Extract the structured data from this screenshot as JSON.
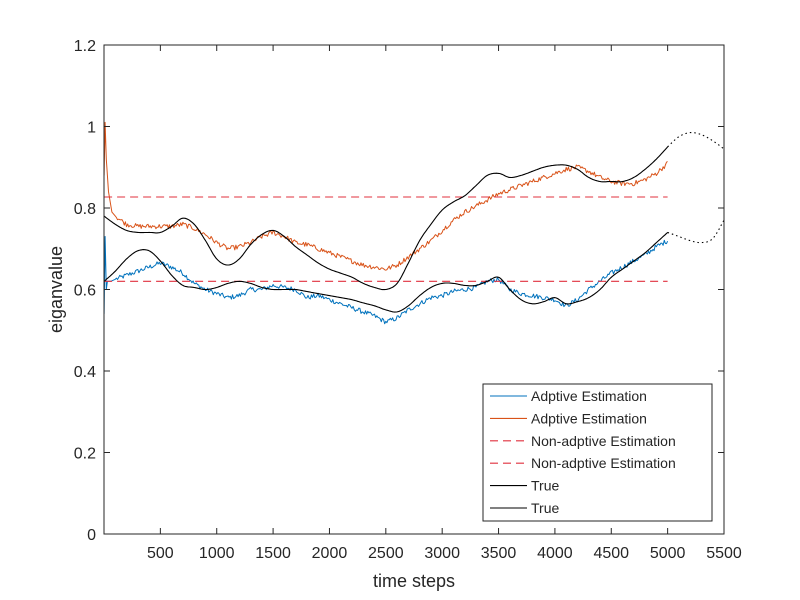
{
  "chart_data": {
    "type": "line",
    "title": "",
    "xlabel": "time steps",
    "ylabel": "eiganvalue",
    "xlim": [
      0,
      5500
    ],
    "ylim": [
      0,
      1.2
    ],
    "xticks": [
      500,
      1000,
      1500,
      2000,
      2500,
      3000,
      3500,
      4000,
      4500,
      5000,
      5500
    ],
    "yticks": [
      0,
      0.2,
      0.4,
      0.6,
      0.8,
      1,
      1.2
    ],
    "xtick_labels": [
      "500",
      "1000",
      "1500",
      "2000",
      "2500",
      "3000",
      "3500",
      "4000",
      "4500",
      "5000",
      "5500"
    ],
    "ytick_labels": [
      "0",
      "0.2",
      "0.4",
      "0.6",
      "0.8",
      "1",
      "1.2"
    ],
    "grid": false,
    "legend_position": "bottom-right",
    "series": [
      {
        "name": "Adptive Estimation",
        "color": "#0072bd",
        "style": "solid",
        "noise": true,
        "x": [
          1,
          10,
          20,
          30,
          60,
          100,
          200,
          300,
          400,
          500,
          600,
          700,
          800,
          900,
          1000,
          1100,
          1200,
          1300,
          1400,
          1500,
          1600,
          1700,
          1800,
          1900,
          2000,
          2100,
          2200,
          2300,
          2400,
          2500,
          2600,
          2700,
          2800,
          2900,
          3000,
          3100,
          3200,
          3300,
          3400,
          3500,
          3600,
          3700,
          3800,
          3900,
          4000,
          4100,
          4200,
          4300,
          4400,
          4500,
          4600,
          4700,
          4800,
          4900,
          5000
        ],
        "y": [
          0.54,
          0.73,
          0.6,
          0.62,
          0.62,
          0.625,
          0.635,
          0.645,
          0.655,
          0.665,
          0.655,
          0.64,
          0.615,
          0.6,
          0.59,
          0.58,
          0.585,
          0.6,
          0.6,
          0.61,
          0.605,
          0.6,
          0.58,
          0.585,
          0.575,
          0.565,
          0.555,
          0.545,
          0.535,
          0.52,
          0.53,
          0.55,
          0.565,
          0.58,
          0.585,
          0.595,
          0.6,
          0.605,
          0.62,
          0.625,
          0.6,
          0.59,
          0.585,
          0.58,
          0.575,
          0.56,
          0.575,
          0.6,
          0.62,
          0.64,
          0.655,
          0.67,
          0.685,
          0.705,
          0.72
        ]
      },
      {
        "name": "Adptive Estimation",
        "color": "#d95319",
        "style": "solid",
        "noise": true,
        "x": [
          1,
          10,
          20,
          40,
          70,
          100,
          200,
          300,
          400,
          500,
          600,
          700,
          800,
          900,
          1000,
          1100,
          1200,
          1300,
          1400,
          1500,
          1600,
          1700,
          1800,
          1900,
          2000,
          2100,
          2200,
          2300,
          2400,
          2500,
          2600,
          2700,
          2800,
          2900,
          3000,
          3100,
          3200,
          3300,
          3400,
          3500,
          3600,
          3700,
          3800,
          3900,
          4000,
          4100,
          4200,
          4300,
          4400,
          4500,
          4600,
          4700,
          4800,
          4900,
          5000
        ],
        "y": [
          0.88,
          1.01,
          0.92,
          0.84,
          0.79,
          0.78,
          0.76,
          0.755,
          0.755,
          0.755,
          0.755,
          0.76,
          0.75,
          0.735,
          0.715,
          0.7,
          0.705,
          0.715,
          0.73,
          0.74,
          0.73,
          0.715,
          0.71,
          0.7,
          0.69,
          0.68,
          0.67,
          0.66,
          0.655,
          0.65,
          0.66,
          0.68,
          0.7,
          0.72,
          0.745,
          0.77,
          0.79,
          0.805,
          0.82,
          0.835,
          0.845,
          0.855,
          0.865,
          0.875,
          0.885,
          0.895,
          0.9,
          0.89,
          0.875,
          0.865,
          0.86,
          0.86,
          0.87,
          0.885,
          0.91
        ]
      },
      {
        "name": "Non-adptive Estimation",
        "color": "#e0303e",
        "style": "dashed",
        "x": [
          1,
          5000
        ],
        "y": [
          0.62,
          0.62
        ]
      },
      {
        "name": "Non-adptive Estimation",
        "color": "#e0303e",
        "style": "dashed",
        "x": [
          1,
          5000
        ],
        "y": [
          0.827,
          0.827
        ]
      },
      {
        "name": "True",
        "color": "#000000",
        "style": "solid",
        "x": [
          1,
          100,
          200,
          300,
          400,
          500,
          600,
          700,
          800,
          900,
          1000,
          1100,
          1200,
          1300,
          1400,
          1500,
          1600,
          1700,
          1800,
          1900,
          2000,
          2100,
          2200,
          2300,
          2400,
          2500,
          2600,
          2700,
          2800,
          2900,
          3000,
          3100,
          3200,
          3300,
          3400,
          3500,
          3600,
          3700,
          3800,
          3900,
          4000,
          4100,
          4200,
          4300,
          4400,
          4500,
          4600,
          4700,
          4800,
          4900,
          5000
        ],
        "y": [
          0.62,
          0.645,
          0.675,
          0.695,
          0.695,
          0.67,
          0.635,
          0.61,
          0.605,
          0.6,
          0.605,
          0.615,
          0.62,
          0.615,
          0.605,
          0.6,
          0.6,
          0.6,
          0.595,
          0.59,
          0.585,
          0.58,
          0.575,
          0.567,
          0.56,
          0.55,
          0.545,
          0.56,
          0.585,
          0.605,
          0.615,
          0.615,
          0.61,
          0.61,
          0.62,
          0.63,
          0.6,
          0.575,
          0.565,
          0.57,
          0.58,
          0.565,
          0.57,
          0.58,
          0.6,
          0.63,
          0.65,
          0.67,
          0.69,
          0.715,
          0.74
        ]
      },
      {
        "name": "True",
        "color": "#000000",
        "style": "solid",
        "x": [
          1,
          100,
          200,
          300,
          400,
          500,
          600,
          700,
          800,
          900,
          1000,
          1100,
          1200,
          1300,
          1400,
          1500,
          1600,
          1700,
          1800,
          1900,
          2000,
          2100,
          2200,
          2300,
          2400,
          2500,
          2600,
          2700,
          2800,
          2900,
          3000,
          3100,
          3200,
          3300,
          3400,
          3500,
          3600,
          3700,
          3800,
          3900,
          4000,
          4100,
          4200,
          4300,
          4400,
          4500,
          4600,
          4700,
          4800,
          4900,
          5000
        ],
        "y": [
          0.78,
          0.76,
          0.745,
          0.74,
          0.74,
          0.74,
          0.755,
          0.775,
          0.76,
          0.72,
          0.675,
          0.66,
          0.675,
          0.71,
          0.735,
          0.745,
          0.73,
          0.705,
          0.685,
          0.665,
          0.65,
          0.64,
          0.63,
          0.615,
          0.605,
          0.6,
          0.615,
          0.665,
          0.72,
          0.76,
          0.795,
          0.815,
          0.83,
          0.855,
          0.88,
          0.885,
          0.875,
          0.88,
          0.89,
          0.9,
          0.905,
          0.905,
          0.895,
          0.875,
          0.865,
          0.865,
          0.865,
          0.875,
          0.895,
          0.92,
          0.95
        ]
      },
      {
        "name": "",
        "color": "#000000",
        "style": "dotted",
        "x": [
          5000,
          5100,
          5200,
          5300,
          5400,
          5500
        ],
        "y": [
          0.95,
          0.975,
          0.985,
          0.98,
          0.965,
          0.945
        ]
      },
      {
        "name": "",
        "color": "#000000",
        "style": "dotted",
        "x": [
          5000,
          5100,
          5200,
          5300,
          5400,
          5500
        ],
        "y": [
          0.74,
          0.73,
          0.72,
          0.715,
          0.725,
          0.77
        ]
      }
    ],
    "legend": [
      "Adptive Estimation",
      "Adptive Estimation",
      "Non-adptive Estimation",
      "Non-adptive Estimation",
      "True",
      "True"
    ]
  }
}
